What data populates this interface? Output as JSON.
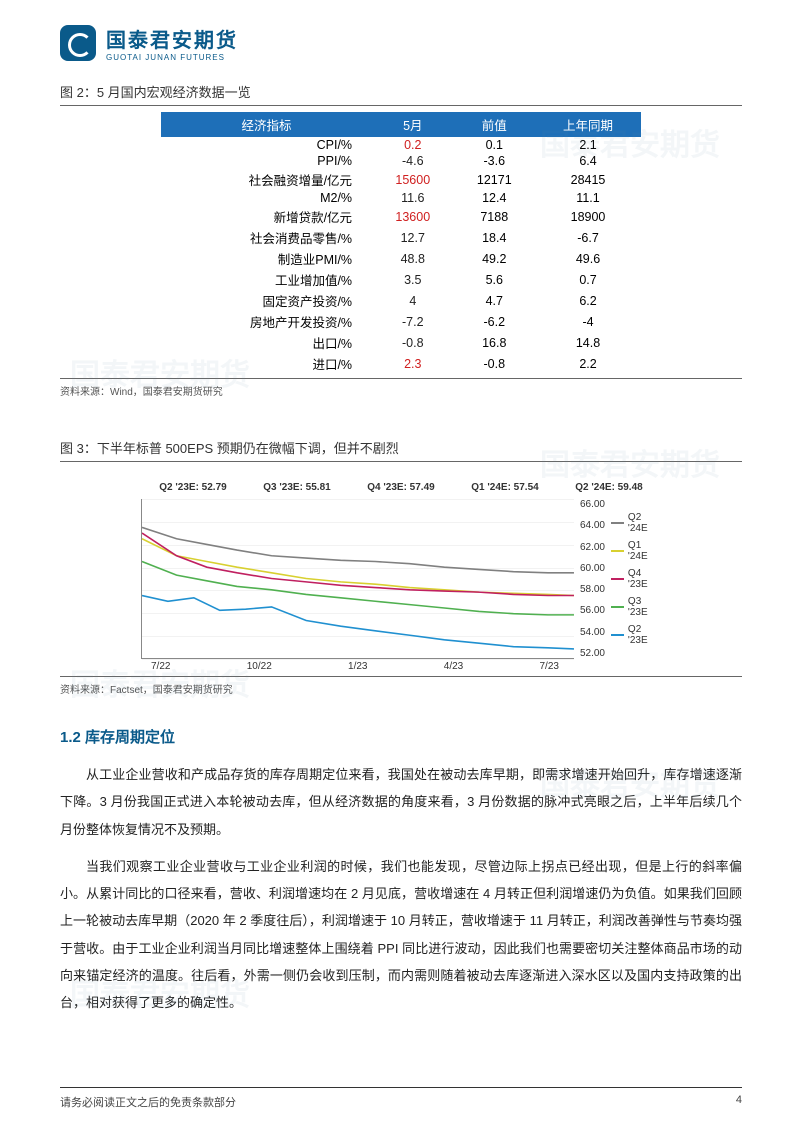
{
  "logo": {
    "cn": "国泰君安期货",
    "en": "GUOTAI JUNAN FUTURES"
  },
  "watermark_text": "国泰君安期货",
  "figure2": {
    "title": "图 2：5 月国内宏观经济数据一览",
    "source": "资料来源：Wind，国泰君安期货研究",
    "header_bg": "#1e6fb8",
    "header_fg": "#ffffff",
    "columns": [
      "经济指标",
      "5月",
      "前值",
      "上年同期"
    ],
    "highlight_color": "#d02020",
    "normal_color": "#222222",
    "rows": [
      {
        "label": "CPI/%",
        "m5": "0.2",
        "prev": "0.1",
        "yoy": "2.1",
        "hl": true
      },
      {
        "label": "PPI/%",
        "m5": "-4.6",
        "prev": "-3.6",
        "yoy": "6.4",
        "hl": false
      },
      {
        "label": "社会融资增量/亿元",
        "m5": "15600",
        "prev": "12171",
        "yoy": "28415",
        "hl": true
      },
      {
        "label": "M2/%",
        "m5": "11.6",
        "prev": "12.4",
        "yoy": "11.1",
        "hl": false
      },
      {
        "label": "新增贷款/亿元",
        "m5": "13600",
        "prev": "7188",
        "yoy": "18900",
        "hl": true
      },
      {
        "label": "社会消费品零售/%",
        "m5": "12.7",
        "prev": "18.4",
        "yoy": "-6.7",
        "hl": false
      },
      {
        "label": "制造业PMI/%",
        "m5": "48.8",
        "prev": "49.2",
        "yoy": "49.6",
        "hl": false
      },
      {
        "label": "工业增加值/%",
        "m5": "3.5",
        "prev": "5.6",
        "yoy": "0.7",
        "hl": false
      },
      {
        "label": "固定资产投资/%",
        "m5": "4",
        "prev": "4.7",
        "yoy": "6.2",
        "hl": false
      },
      {
        "label": "房地产开发投资/%",
        "m5": "-7.2",
        "prev": "-6.2",
        "yoy": "-4",
        "hl": false
      },
      {
        "label": "出口/%",
        "m5": "-0.8",
        "prev": "16.8",
        "yoy": "14.8",
        "hl": false
      },
      {
        "label": "进口/%",
        "m5": "2.3",
        "prev": "-0.8",
        "yoy": "2.2",
        "hl": true
      }
    ]
  },
  "figure3": {
    "title": "图 3：下半年标普 500EPS 预期仍在微幅下调，但并不剧烈",
    "source": "资料来源：Factset，国泰君安期货研究",
    "type": "line",
    "ylim": [
      52,
      66
    ],
    "yticks": [
      "66.00",
      "64.00",
      "62.00",
      "60.00",
      "58.00",
      "56.00",
      "54.00",
      "52.00"
    ],
    "xticks": [
      "7/22",
      "10/22",
      "1/23",
      "4/23",
      "7/23"
    ],
    "header_labels": [
      "Q2 '23E: 52.79",
      "Q3 '23E: 55.81",
      "Q4 '23E: 57.49",
      "Q1 '24E: 57.54",
      "Q2 '24E: 59.48"
    ],
    "series": [
      {
        "name": "Q2 '24E",
        "label": "Q2 '24E",
        "color": "#808080",
        "points": [
          [
            0,
            63.5
          ],
          [
            8,
            62.5
          ],
          [
            15,
            62.0
          ],
          [
            22,
            61.5
          ],
          [
            30,
            61.0
          ],
          [
            38,
            60.8
          ],
          [
            46,
            60.6
          ],
          [
            54,
            60.5
          ],
          [
            62,
            60.3
          ],
          [
            70,
            60.0
          ],
          [
            78,
            59.8
          ],
          [
            86,
            59.6
          ],
          [
            94,
            59.5
          ],
          [
            100,
            59.5
          ]
        ]
      },
      {
        "name": "Q1 '24E",
        "label": "Q1 '24E",
        "color": "#d8d030",
        "points": [
          [
            0,
            62.5
          ],
          [
            8,
            61.0
          ],
          [
            15,
            60.5
          ],
          [
            22,
            60.0
          ],
          [
            30,
            59.5
          ],
          [
            38,
            59.0
          ],
          [
            46,
            58.7
          ],
          [
            54,
            58.5
          ],
          [
            62,
            58.2
          ],
          [
            70,
            58.0
          ],
          [
            78,
            57.8
          ],
          [
            86,
            57.7
          ],
          [
            94,
            57.6
          ],
          [
            100,
            57.5
          ]
        ]
      },
      {
        "name": "Q4 '23E",
        "label": "Q4 '23E",
        "color": "#c02060",
        "points": [
          [
            0,
            63.0
          ],
          [
            8,
            61.0
          ],
          [
            15,
            60.0
          ],
          [
            22,
            59.5
          ],
          [
            30,
            59.0
          ],
          [
            38,
            58.7
          ],
          [
            46,
            58.4
          ],
          [
            54,
            58.2
          ],
          [
            62,
            58.0
          ],
          [
            70,
            57.9
          ],
          [
            78,
            57.8
          ],
          [
            86,
            57.6
          ],
          [
            94,
            57.5
          ],
          [
            100,
            57.5
          ]
        ]
      },
      {
        "name": "Q3 '23E",
        "label": "Q3 '23E",
        "color": "#50b050",
        "points": [
          [
            0,
            60.5
          ],
          [
            8,
            59.3
          ],
          [
            15,
            58.8
          ],
          [
            22,
            58.3
          ],
          [
            30,
            58.0
          ],
          [
            38,
            57.6
          ],
          [
            46,
            57.3
          ],
          [
            54,
            57.0
          ],
          [
            62,
            56.7
          ],
          [
            70,
            56.4
          ],
          [
            78,
            56.1
          ],
          [
            86,
            55.9
          ],
          [
            94,
            55.8
          ],
          [
            100,
            55.8
          ]
        ]
      },
      {
        "name": "Q2 '23E",
        "label": "Q2 '23E",
        "color": "#2090d0",
        "points": [
          [
            0,
            57.5
          ],
          [
            6,
            57.0
          ],
          [
            12,
            57.3
          ],
          [
            18,
            56.2
          ],
          [
            24,
            56.3
          ],
          [
            30,
            56.5
          ],
          [
            38,
            55.3
          ],
          [
            46,
            54.8
          ],
          [
            54,
            54.4
          ],
          [
            62,
            54.0
          ],
          [
            70,
            53.6
          ],
          [
            78,
            53.3
          ],
          [
            86,
            53.0
          ],
          [
            94,
            52.9
          ],
          [
            100,
            52.8
          ]
        ]
      }
    ],
    "legend_order": [
      "Q2 '24E",
      "Q1 '24E",
      "Q4 '23E",
      "Q3 '23E",
      "Q2 '23E"
    ],
    "grid_color": "#f2f2f2"
  },
  "section": {
    "number_title": "1.2  库存周期定位",
    "p1": "从工业企业营收和产成品存货的库存周期定位来看，我国处在被动去库早期，即需求增速开始回升，库存增速逐渐下降。3 月份我国正式进入本轮被动去库，但从经济数据的角度来看，3 月份数据的脉冲式亮眼之后，上半年后续几个月份整体恢复情况不及预期。",
    "p2": "当我们观察工业企业营收与工业企业利润的时候，我们也能发现，尽管边际上拐点已经出现，但是上行的斜率偏小。从累计同比的口径来看，营收、利润增速均在 2 月见底，营收增速在 4 月转正但利润增速仍为负值。如果我们回顾上一轮被动去库早期（2020 年 2 季度往后），利润增速于 10 月转正，营收增速于 11 月转正，利润改善弹性与节奏均强于营收。由于工业企业利润当月同比增速整体上围绕着 PPI 同比进行波动，因此我们也需要密切关注整体商品市场的动向来锚定经济的温度。往后看，外需一侧仍会收到压制，而内需则随着被动去库逐渐进入深水区以及国内支持政策的出台，相对获得了更多的确定性。"
  },
  "footer": {
    "text": "请务必阅读正文之后的免责条款部分",
    "page": "4"
  }
}
